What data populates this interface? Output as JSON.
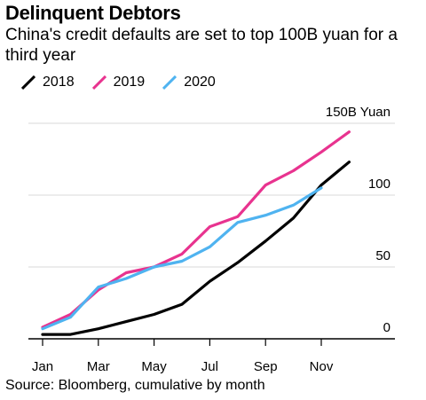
{
  "header": {
    "title": "Delinquent Debtors",
    "subtitle": "China's credit defaults are set to top 100B yuan for a third year"
  },
  "footer": {
    "source": "Source: Bloomberg, cumulative by month"
  },
  "chart_data": {
    "type": "line",
    "title": "Delinquent Debtors",
    "subtitle": "China's credit defaults are set to top 100B yuan for a third year",
    "xlabel": "",
    "ylabel": "",
    "y_unit_label": "150B Yuan",
    "ylim": [
      0,
      150
    ],
    "y_ticks": [
      0,
      50,
      100,
      150
    ],
    "y_tick_labels": [
      "0",
      "50",
      "100",
      "150B Yuan"
    ],
    "x": [
      "Jan",
      "Feb",
      "Mar",
      "Apr",
      "May",
      "Jun",
      "Jul",
      "Aug",
      "Sep",
      "Oct",
      "Nov",
      "Dec"
    ],
    "x_tick_labels": [
      "Jan",
      "Mar",
      "May",
      "Jul",
      "Sep",
      "Nov"
    ],
    "grid": "horizontal",
    "legend": "top-left",
    "series": [
      {
        "name": "2018",
        "color": "#000000",
        "values": [
          3,
          3,
          7,
          12,
          17,
          24,
          40,
          53,
          68,
          84,
          107,
          123
        ]
      },
      {
        "name": "2019",
        "color": "#e8338f",
        "values": [
          8,
          17,
          34,
          46,
          50,
          59,
          78,
          85,
          107,
          117,
          130,
          144
        ]
      },
      {
        "name": "2020",
        "color": "#4fb3f0",
        "values": [
          7,
          15,
          36,
          42,
          50,
          54,
          64,
          81,
          86,
          93,
          105,
          null
        ]
      }
    ]
  }
}
